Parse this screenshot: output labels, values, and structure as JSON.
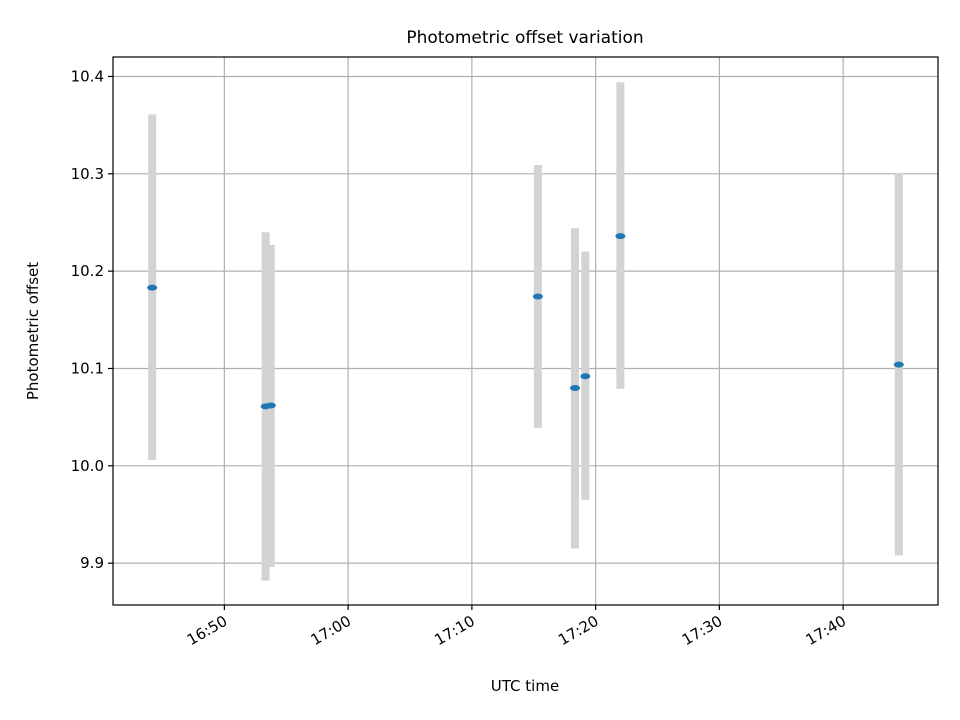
{
  "chart_data": {
    "type": "scatter",
    "title": "Photometric offset variation",
    "xlabel": "UTC time",
    "ylabel": "Photometric offset",
    "x_ticks": [
      "16:50",
      "17:00",
      "17:10",
      "17:20",
      "17:30",
      "17:40"
    ],
    "y_ticks": [
      "9.9",
      "10.0",
      "10.1",
      "10.2",
      "10.3",
      "10.4"
    ],
    "xlim": [
      "16:41:00",
      "17:47:40"
    ],
    "ylim": [
      9.857,
      10.42
    ],
    "grid": true,
    "marker_color": "#1f77b4",
    "errorbar_color": "#d3d3d3",
    "points": [
      {
        "x": "16:44:10",
        "y": 10.183,
        "yerr_low": 10.006,
        "yerr_high": 10.361
      },
      {
        "x": "16:53:20",
        "y": 10.061,
        "yerr_low": 9.882,
        "yerr_high": 10.24
      },
      {
        "x": "16:53:45",
        "y": 10.062,
        "yerr_low": 9.896,
        "yerr_high": 10.227
      },
      {
        "x": "17:15:20",
        "y": 10.174,
        "yerr_low": 10.039,
        "yerr_high": 10.309
      },
      {
        "x": "17:18:20",
        "y": 10.08,
        "yerr_low": 9.915,
        "yerr_high": 10.244
      },
      {
        "x": "17:19:10",
        "y": 10.092,
        "yerr_low": 9.965,
        "yerr_high": 10.22
      },
      {
        "x": "17:22:00",
        "y": 10.236,
        "yerr_low": 10.079,
        "yerr_high": 10.394
      },
      {
        "x": "17:44:30",
        "y": 10.104,
        "yerr_low": 9.908,
        "yerr_high": 10.301
      }
    ]
  }
}
